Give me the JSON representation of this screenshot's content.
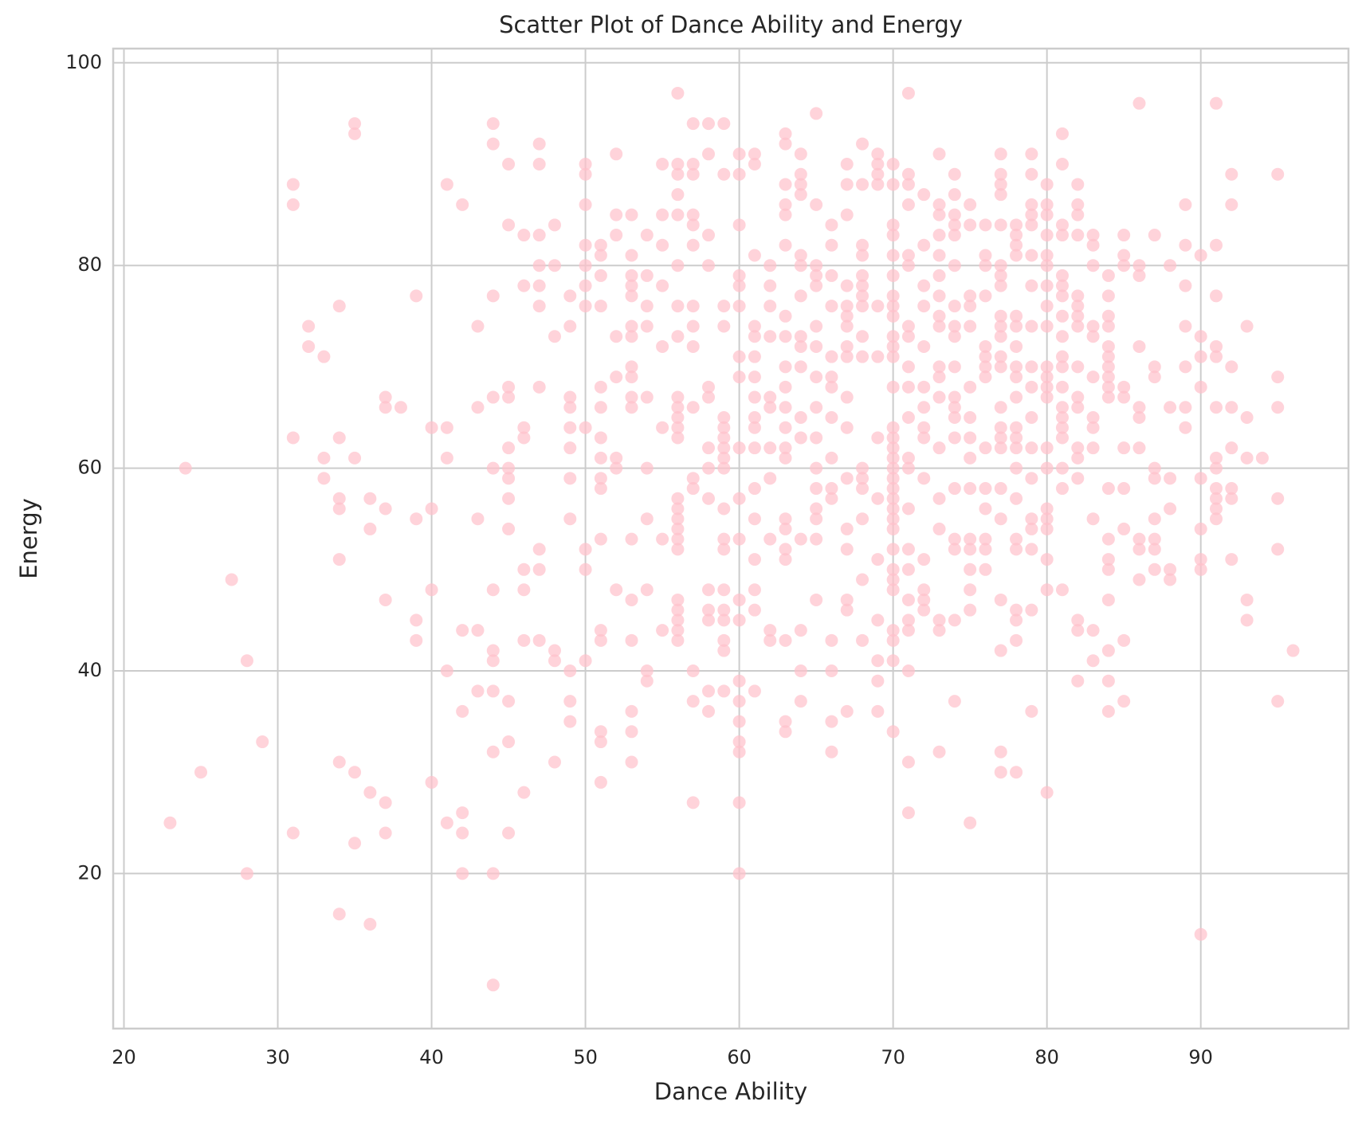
{
  "chart_data": {
    "type": "scatter",
    "title": "Scatter Plot of Dance Ability and Energy",
    "x_label": "Dance Ability",
    "y_label": "Energy",
    "color": "pink",
    "alpha": 0.7,
    "grid": true,
    "xlim": [
      19.3,
      99.6
    ],
    "ylim": [
      4.7,
      101.4
    ],
    "xticks": [
      20,
      30,
      40,
      50,
      60,
      70,
      80,
      90
    ],
    "yticks": [
      20,
      40,
      60,
      80,
      100
    ],
    "x": [
      23,
      24,
      25,
      27,
      28,
      28,
      29,
      31,
      31,
      31,
      31,
      32,
      32,
      33,
      33,
      33,
      34,
      34,
      34,
      34,
      34,
      34,
      34,
      35,
      35,
      35,
      35,
      35,
      36,
      36,
      36,
      36,
      37,
      37,
      37,
      37,
      37,
      37,
      38,
      39,
      39,
      39,
      39,
      40,
      40,
      40,
      40,
      41,
      41,
      41,
      41,
      41,
      42,
      42,
      42,
      42,
      42,
      42,
      43,
      43,
      43,
      43,
      43,
      44,
      44,
      44,
      44,
      44,
      44,
      44,
      44,
      44,
      44,
      44,
      44,
      45,
      45,
      45,
      45,
      45,
      45,
      45,
      45,
      45,
      45,
      45,
      45,
      46,
      46,
      46,
      46,
      46,
      46,
      46,
      46,
      47,
      47,
      47,
      47,
      47,
      47,
      47,
      47,
      47,
      47,
      48,
      48,
      48,
      48,
      48,
      48,
      49,
      49,
      49,
      49,
      49,
      49,
      49,
      49,
      49,
      49,
      49,
      50,
      50,
      50,
      50,
      50,
      50,
      50,
      50,
      50,
      50,
      50,
      51,
      51,
      51,
      51,
      51,
      51,
      51,
      51,
      51,
      51,
      51,
      51,
      51,
      51,
      51,
      51,
      52,
      52,
      52,
      52,
      52,
      52,
      52,
      52,
      53,
      53,
      53,
      53,
      53,
      53,
      53,
      53,
      53,
      53,
      53,
      53,
      53,
      53,
      53,
      53,
      53,
      54,
      54,
      54,
      54,
      54,
      54,
      54,
      54,
      54,
      54,
      55,
      55,
      55,
      55,
      55,
      55,
      55,
      55,
      56,
      56,
      56,
      56,
      56,
      56,
      56,
      56,
      56,
      56,
      56,
      56,
      56,
      56,
      56,
      56,
      56,
      56,
      56,
      56,
      56,
      56,
      56,
      56,
      57,
      57,
      57,
      57,
      57,
      57,
      57,
      57,
      57,
      57,
      57,
      57,
      57,
      57,
      57,
      58,
      58,
      58,
      58,
      58,
      58,
      58,
      58,
      58,
      58,
      58,
      58,
      58,
      58,
      59,
      59,
      59,
      59,
      59,
      59,
      59,
      59,
      59,
      59,
      59,
      59,
      59,
      59,
      59,
      59,
      59,
      59,
      59,
      60,
      60,
      60,
      60,
      60,
      60,
      60,
      60,
      60,
      60,
      60,
      60,
      60,
      60,
      60,
      60,
      60,
      60,
      60,
      60,
      61,
      61,
      61,
      61,
      61,
      61,
      61,
      61,
      61,
      61,
      61,
      61,
      61,
      61,
      61,
      61,
      61,
      62,
      62,
      62,
      62,
      62,
      62,
      62,
      62,
      62,
      62,
      62,
      63,
      63,
      63,
      63,
      63,
      63,
      63,
      63,
      63,
      63,
      63,
      63,
      63,
      63,
      63,
      63,
      63,
      63,
      63,
      63,
      63,
      64,
      64,
      64,
      64,
      64,
      64,
      64,
      64,
      64,
      64,
      64,
      64,
      64,
      64,
      64,
      64,
      65,
      65,
      65,
      65,
      65,
      65,
      65,
      65,
      65,
      65,
      65,
      65,
      65,
      65,
      65,
      65,
      66,
      66,
      66,
      66,
      66,
      66,
      66,
      66,
      66,
      66,
      66,
      66,
      66,
      66,
      66,
      67,
      67,
      67,
      67,
      67,
      67,
      67,
      67,
      67,
      67,
      67,
      67,
      67,
      67,
      67,
      67,
      67,
      68,
      68,
      68,
      68,
      68,
      68,
      68,
      68,
      68,
      68,
      68,
      68,
      68,
      68,
      68,
      68,
      69,
      69,
      69,
      69,
      69,
      69,
      69,
      69,
      69,
      69,
      69,
      69,
      69,
      70,
      70,
      70,
      70,
      70,
      70,
      70,
      70,
      70,
      70,
      70,
      70,
      70,
      70,
      70,
      70,
      70,
      70,
      70,
      70,
      70,
      70,
      70,
      70,
      70,
      70,
      70,
      70,
      70,
      70,
      70,
      70,
      71,
      71,
      71,
      71,
      71,
      71,
      71,
      71,
      71,
      71,
      71,
      71,
      71,
      71,
      71,
      71,
      71,
      71,
      71,
      71,
      71,
      71,
      72,
      72,
      72,
      72,
      72,
      72,
      72,
      72,
      72,
      72,
      72,
      72,
      72,
      72,
      73,
      73,
      73,
      73,
      73,
      73,
      73,
      73,
      73,
      73,
      73,
      73,
      73,
      73,
      73,
      73,
      73,
      73,
      74,
      74,
      74,
      74,
      74,
      74,
      74,
      74,
      74,
      74,
      74,
      74,
      74,
      74,
      74,
      74,
      74,
      74,
      74,
      75,
      75,
      75,
      75,
      75,
      75,
      75,
      75,
      75,
      75,
      75,
      75,
      75,
      75,
      75,
      75,
      76,
      76,
      76,
      76,
      76,
      76,
      76,
      76,
      76,
      76,
      76,
      76,
      76,
      76,
      77,
      77,
      77,
      77,
      77,
      77,
      77,
      77,
      77,
      77,
      77,
      77,
      77,
      77,
      77,
      77,
      77,
      77,
      77,
      77,
      77,
      77,
      77,
      78,
      78,
      78,
      78,
      78,
      78,
      78,
      78,
      78,
      78,
      78,
      78,
      78,
      78,
      78,
      78,
      78,
      78,
      78,
      78,
      78,
      79,
      79,
      79,
      79,
      79,
      79,
      79,
      79,
      79,
      79,
      79,
      79,
      79,
      79,
      79,
      79,
      79,
      79,
      80,
      80,
      80,
      80,
      80,
      80,
      80,
      80,
      80,
      80,
      80,
      80,
      80,
      80,
      80,
      80,
      80,
      80,
      80,
      80,
      80,
      81,
      81,
      81,
      81,
      81,
      81,
      81,
      81,
      81,
      81,
      81,
      81,
      81,
      81,
      81,
      81,
      81,
      81,
      81,
      82,
      82,
      82,
      82,
      82,
      82,
      82,
      82,
      82,
      82,
      82,
      82,
      82,
      82,
      82,
      82,
      82,
      83,
      83,
      83,
      83,
      83,
      83,
      83,
      83,
      83,
      83,
      83,
      83,
      84,
      84,
      84,
      84,
      84,
      84,
      84,
      84,
      84,
      84,
      84,
      84,
      84,
      84,
      84,
      84,
      84,
      84,
      85,
      85,
      85,
      85,
      85,
      85,
      85,
      85,
      85,
      85,
      86,
      86,
      86,
      86,
      86,
      86,
      86,
      86,
      86,
      86,
      87,
      87,
      87,
      87,
      87,
      87,
      87,
      87,
      87,
      88,
      88,
      88,
      88,
      88,
      88,
      89,
      89,
      89,
      89,
      89,
      89,
      89,
      90,
      90,
      90,
      90,
      90,
      90,
      90,
      90,
      90,
      91,
      91,
      91,
      91,
      91,
      91,
      91,
      91,
      91,
      91,
      91,
      91,
      92,
      92,
      92,
      92,
      92,
      92,
      92,
      92,
      93,
      93,
      93,
      93,
      93,
      94,
      95,
      95,
      95,
      95,
      95,
      95,
      96
    ],
    "values": [
      25,
      60,
      30,
      49,
      41,
      20,
      33,
      88,
      86,
      63,
      24,
      74,
      72,
      71,
      61,
      59,
      76,
      63,
      57,
      56,
      51,
      31,
      16,
      94,
      93,
      61,
      30,
      23,
      57,
      54,
      28,
      15,
      67,
      66,
      56,
      47,
      27,
      24,
      66,
      77,
      55,
      45,
      43,
      64,
      56,
      48,
      29,
      88,
      64,
      61,
      40,
      25,
      86,
      44,
      36,
      26,
      24,
      20,
      74,
      66,
      55,
      44,
      38,
      94,
      92,
      77,
      67,
      60,
      48,
      42,
      41,
      38,
      32,
      20,
      9,
      90,
      84,
      68,
      67,
      62,
      60,
      59,
      57,
      54,
      37,
      33,
      24,
      83,
      78,
      64,
      63,
      50,
      48,
      43,
      28,
      92,
      90,
      83,
      80,
      78,
      76,
      68,
      52,
      50,
      43,
      84,
      80,
      73,
      42,
      41,
      31,
      77,
      74,
      67,
      66,
      64,
      62,
      59,
      55,
      40,
      37,
      35,
      90,
      89,
      86,
      82,
      80,
      78,
      76,
      64,
      52,
      50,
      41,
      82,
      81,
      79,
      76,
      68,
      66,
      63,
      61,
      59,
      58,
      53,
      44,
      43,
      34,
      33,
      29,
      91,
      85,
      83,
      73,
      69,
      61,
      60,
      48,
      85,
      81,
      79,
      78,
      77,
      74,
      73,
      70,
      69,
      67,
      66,
      53,
      47,
      43,
      36,
      34,
      31,
      83,
      79,
      76,
      74,
      67,
      60,
      55,
      48,
      40,
      39,
      90,
      85,
      82,
      78,
      72,
      64,
      53,
      44,
      97,
      90,
      89,
      87,
      85,
      80,
      76,
      73,
      67,
      66,
      65,
      64,
      63,
      57,
      56,
      55,
      54,
      53,
      52,
      47,
      46,
      45,
      44,
      43,
      94,
      90,
      89,
      85,
      84,
      82,
      76,
      74,
      72,
      66,
      59,
      58,
      40,
      37,
      27,
      94,
      91,
      83,
      80,
      68,
      67,
      62,
      60,
      57,
      48,
      46,
      45,
      38,
      36,
      94,
      89,
      76,
      74,
      65,
      64,
      63,
      62,
      61,
      60,
      56,
      53,
      52,
      48,
      46,
      45,
      43,
      42,
      38,
      91,
      89,
      84,
      79,
      78,
      76,
      71,
      69,
      62,
      57,
      53,
      47,
      45,
      39,
      37,
      35,
      33,
      32,
      27,
      20,
      91,
      90,
      81,
      74,
      73,
      71,
      69,
      67,
      65,
      64,
      62,
      58,
      55,
      51,
      48,
      46,
      38,
      80,
      78,
      76,
      73,
      67,
      66,
      62,
      59,
      53,
      44,
      43,
      93,
      92,
      88,
      86,
      85,
      82,
      75,
      73,
      70,
      68,
      66,
      64,
      62,
      61,
      55,
      54,
      52,
      51,
      43,
      35,
      34,
      91,
      89,
      88,
      87,
      81,
      80,
      77,
      73,
      72,
      70,
      65,
      63,
      53,
      44,
      40,
      37,
      95,
      86,
      80,
      79,
      78,
      74,
      72,
      69,
      66,
      63,
      60,
      58,
      56,
      55,
      53,
      47,
      84,
      82,
      79,
      76,
      71,
      69,
      68,
      65,
      61,
      58,
      57,
      43,
      40,
      35,
      32,
      90,
      88,
      85,
      78,
      76,
      75,
      74,
      72,
      71,
      67,
      64,
      59,
      54,
      52,
      47,
      46,
      36,
      92,
      88,
      82,
      81,
      79,
      78,
      77,
      76,
      73,
      71,
      60,
      59,
      58,
      55,
      49,
      43,
      91,
      90,
      89,
      88,
      76,
      71,
      63,
      57,
      51,
      45,
      41,
      39,
      36,
      90,
      88,
      84,
      83,
      81,
      79,
      77,
      76,
      75,
      73,
      72,
      71,
      68,
      64,
      63,
      62,
      61,
      60,
      59,
      58,
      57,
      56,
      55,
      54,
      52,
      50,
      49,
      48,
      44,
      43,
      41,
      34,
      97,
      89,
      88,
      86,
      81,
      80,
      74,
      73,
      70,
      68,
      65,
      61,
      60,
      56,
      52,
      50,
      47,
      45,
      44,
      40,
      31,
      26,
      87,
      82,
      78,
      76,
      72,
      68,
      66,
      64,
      63,
      59,
      51,
      48,
      47,
      46,
      91,
      86,
      85,
      83,
      81,
      79,
      77,
      75,
      74,
      70,
      69,
      67,
      62,
      57,
      54,
      45,
      44,
      32,
      89,
      87,
      85,
      84,
      83,
      80,
      76,
      74,
      73,
      70,
      67,
      66,
      65,
      63,
      58,
      53,
      52,
      45,
      37,
      86,
      84,
      77,
      76,
      74,
      68,
      65,
      63,
      61,
      58,
      53,
      52,
      50,
      48,
      46,
      25,
      84,
      81,
      80,
      77,
      72,
      71,
      70,
      69,
      62,
      58,
      56,
      53,
      52,
      50,
      91,
      89,
      88,
      87,
      84,
      80,
      79,
      78,
      75,
      74,
      73,
      71,
      70,
      66,
      64,
      63,
      62,
      58,
      55,
      47,
      42,
      32,
      30,
      84,
      83,
      82,
      81,
      75,
      74,
      72,
      70,
      69,
      67,
      64,
      63,
      62,
      60,
      57,
      53,
      52,
      46,
      45,
      43,
      30,
      91,
      89,
      86,
      85,
      84,
      81,
      78,
      74,
      70,
      68,
      65,
      62,
      59,
      55,
      54,
      52,
      46,
      36,
      88,
      86,
      85,
      83,
      81,
      80,
      78,
      76,
      74,
      70,
      69,
      68,
      67,
      62,
      60,
      56,
      55,
      54,
      51,
      48,
      28,
      93,
      90,
      84,
      83,
      79,
      78,
      77,
      75,
      73,
      71,
      70,
      68,
      66,
      65,
      64,
      63,
      60,
      58,
      48,
      88,
      86,
      85,
      83,
      77,
      76,
      75,
      74,
      70,
      67,
      66,
      62,
      61,
      59,
      45,
      44,
      39,
      83,
      82,
      80,
      74,
      73,
      69,
      65,
      64,
      62,
      55,
      44,
      41,
      79,
      77,
      75,
      74,
      72,
      71,
      70,
      69,
      68,
      67,
      58,
      53,
      51,
      50,
      47,
      42,
      39,
      36,
      83,
      81,
      80,
      68,
      67,
      62,
      58,
      54,
      43,
      37,
      96,
      80,
      79,
      72,
      66,
      65,
      62,
      53,
      52,
      49,
      83,
      70,
      69,
      60,
      59,
      55,
      53,
      52,
      50,
      80,
      66,
      59,
      56,
      50,
      49,
      86,
      82,
      78,
      74,
      70,
      66,
      64,
      81,
      73,
      71,
      68,
      59,
      54,
      51,
      50,
      14,
      96,
      82,
      77,
      72,
      71,
      66,
      61,
      60,
      58,
      57,
      56,
      55,
      89,
      86,
      70,
      66,
      62,
      58,
      57,
      51,
      74,
      65,
      61,
      47,
      45,
      61,
      89,
      69,
      66,
      57,
      52,
      37,
      42
    ]
  }
}
